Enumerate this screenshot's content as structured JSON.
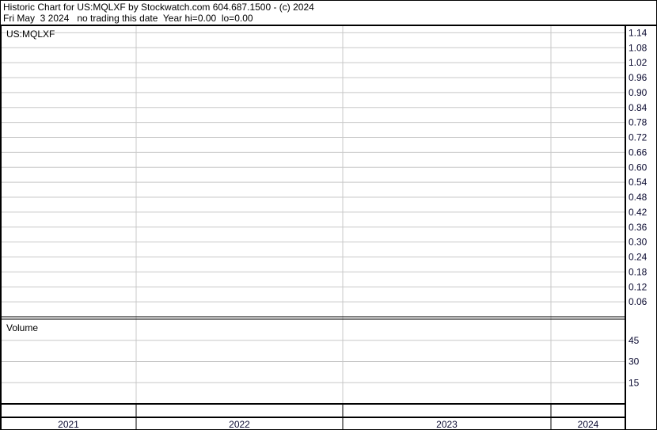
{
  "header": {
    "title": "Historic Chart for US:MQLXF by Stockwatch.com 604.687.1500 - (c) 2024",
    "subtitle": "Fri May  3 2024   no trading this date  Year hi=0.00  lo=0.00"
  },
  "chart_data": [
    {
      "type": "line",
      "title": "US:MQLXF",
      "y_ticks": [
        "1.14",
        "1.08",
        "1.02",
        "0.96",
        "0.90",
        "0.84",
        "0.78",
        "0.72",
        "0.66",
        "0.60",
        "0.54",
        "0.48",
        "0.42",
        "0.36",
        "0.30",
        "0.24",
        "0.18",
        "0.12",
        "0.06"
      ],
      "ylim": [
        0,
        1.17
      ],
      "x_ticks": [
        "2021",
        "2022",
        "2023",
        "2024"
      ],
      "series": [],
      "grid": true
    },
    {
      "type": "bar",
      "title": "Volume",
      "y_ticks": [
        "45",
        "30",
        "15"
      ],
      "ylim": [
        0,
        60
      ],
      "series": [],
      "grid": true
    }
  ],
  "colors": {
    "grid": "#c8c8c8",
    "border": "#000000",
    "text": "#0a0a30"
  }
}
